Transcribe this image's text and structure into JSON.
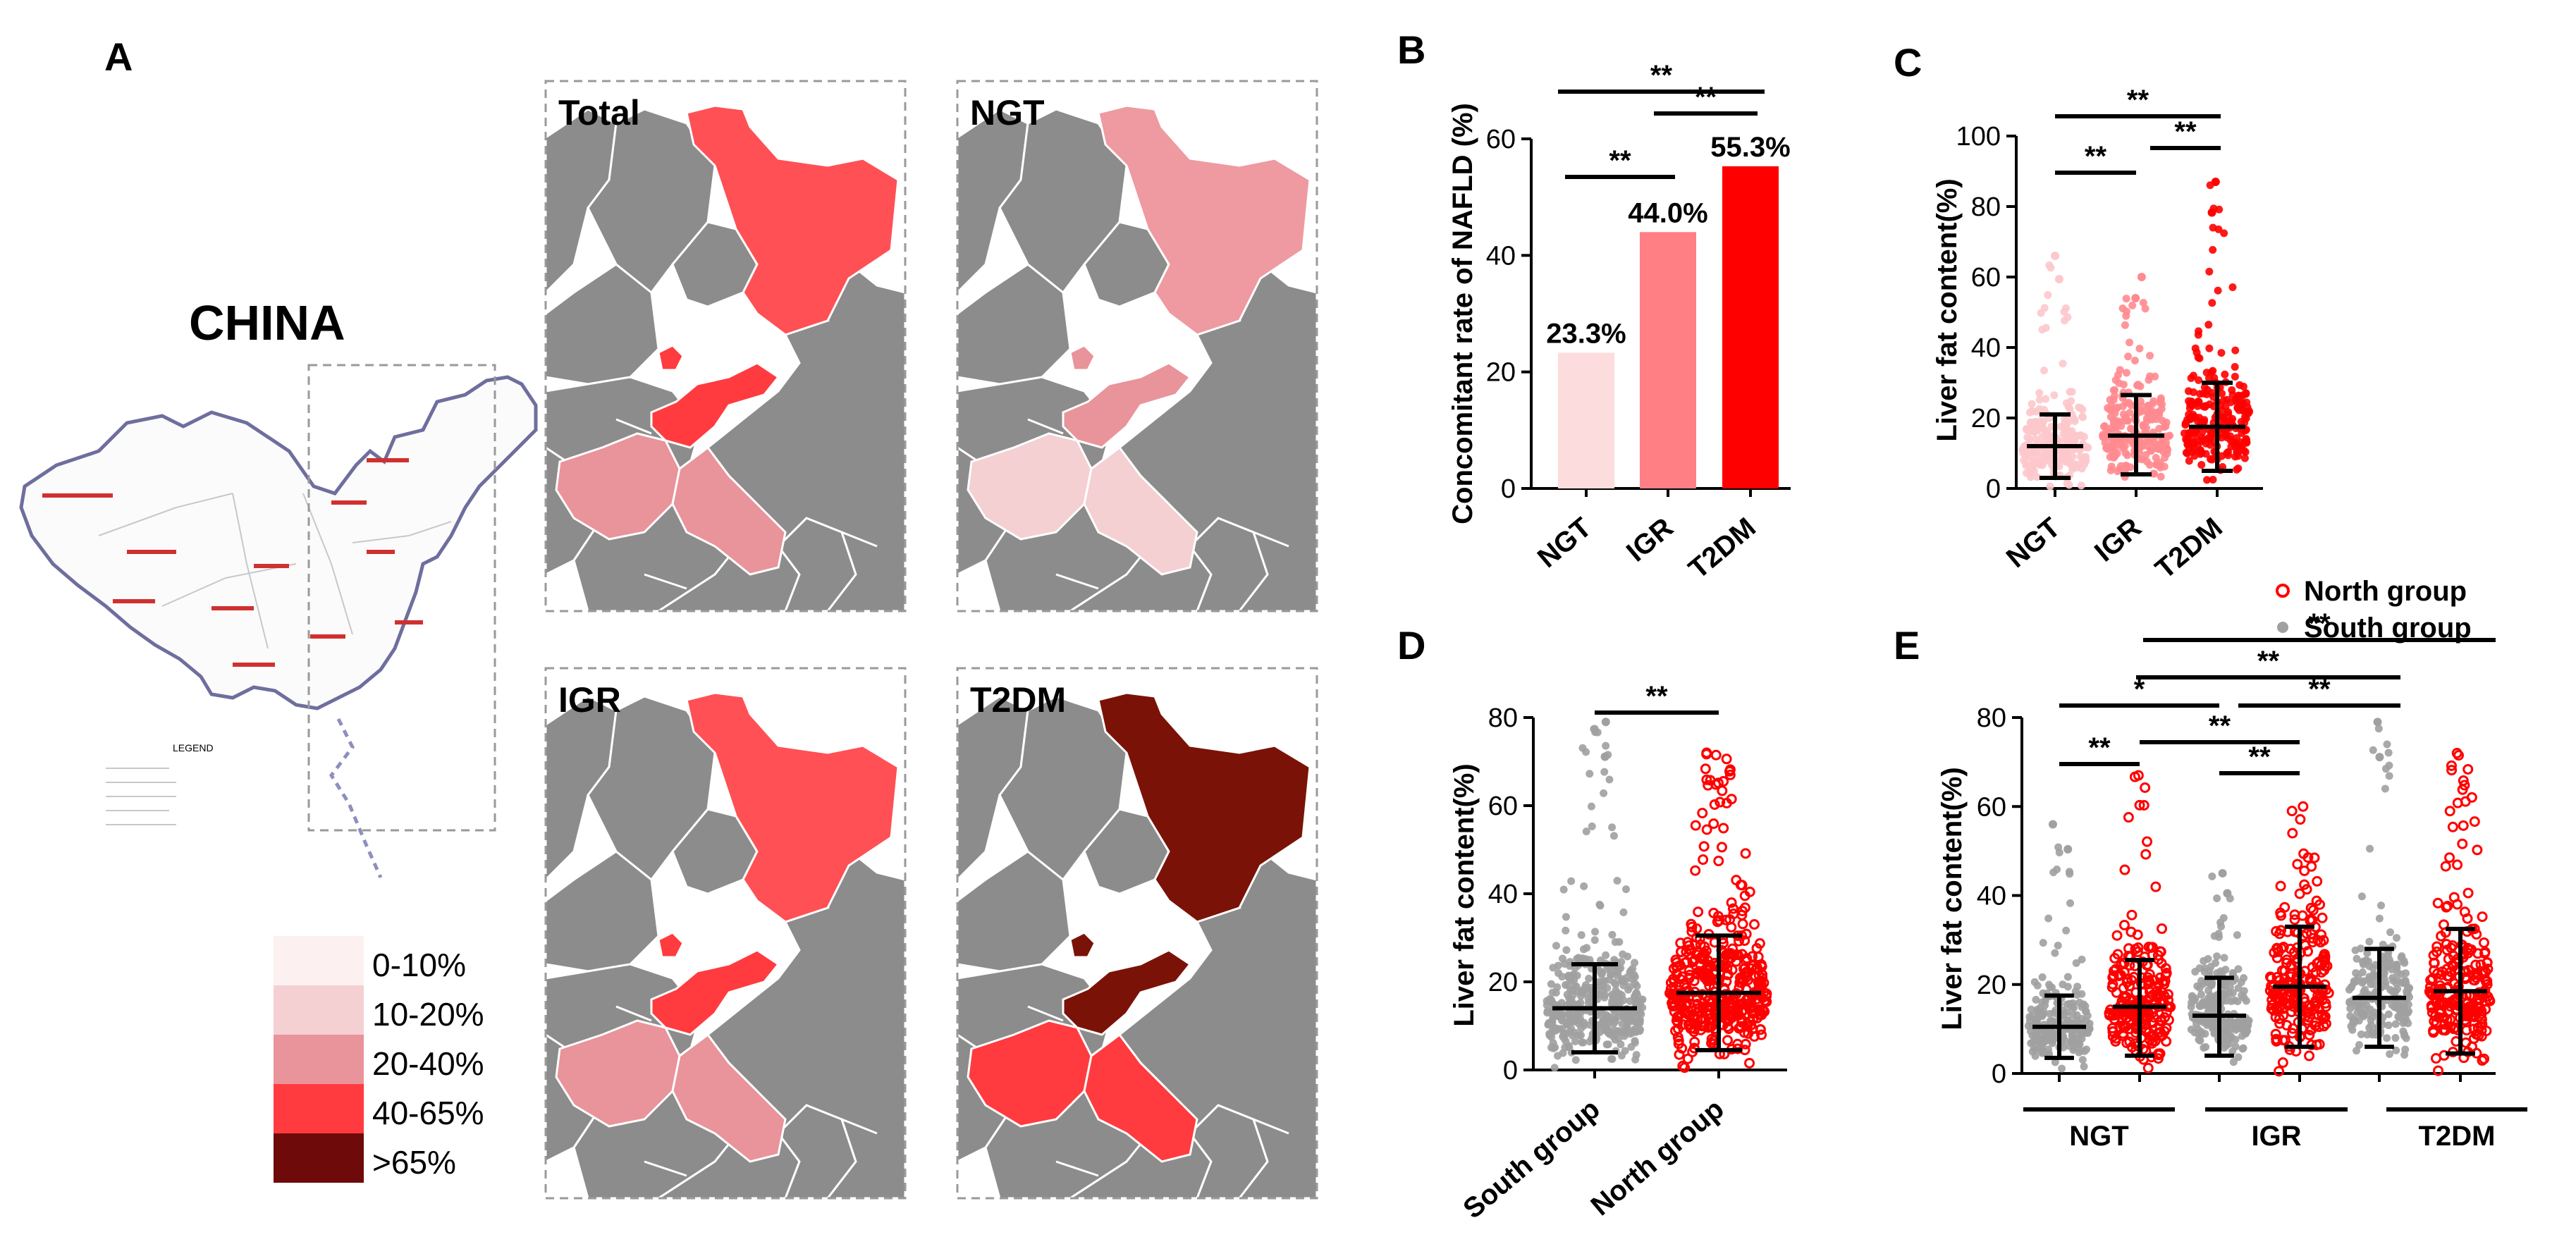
{
  "panels": {
    "A": {
      "label": "A",
      "country_title": "CHINA",
      "map_titles": [
        "Total",
        "NGT",
        "IGR",
        "T2DM"
      ],
      "inset_legend_title": "LEGEND",
      "legend_bins": [
        {
          "label": "0-10%",
          "color": "#fdf0f0"
        },
        {
          "label": "10-20%",
          "color": "#f4d0d2"
        },
        {
          "label": "20-40%",
          "color": "#e9939a"
        },
        {
          "label": "40-65%",
          "color": "#ff3b3f"
        },
        {
          "label": ">65%",
          "color": "#6e0a0a"
        }
      ],
      "region_colors": {
        "Total": {
          "northeast": "#ff5055",
          "shandong": "#ff3b3f",
          "henan": "#e9939a",
          "jiangsu": "#e9939a",
          "beijing": "#ff3b3f"
        },
        "NGT": {
          "northeast": "#ee9aa0",
          "shandong": "#e9939a",
          "henan": "#f4d0d2",
          "jiangsu": "#f4d0d2",
          "beijing": "#e9939a"
        },
        "IGR": {
          "northeast": "#ff5055",
          "shandong": "#ff3b3f",
          "henan": "#e9939a",
          "jiangsu": "#e9939a",
          "beijing": "#ff3b3f"
        },
        "T2DM": {
          "northeast": "#7a1208",
          "shandong": "#7a1208",
          "henan": "#ff3b3f",
          "jiangsu": "#ff3b3f",
          "beijing": "#7a1208"
        }
      }
    },
    "B": {
      "label": "B"
    },
    "C": {
      "label": "C"
    },
    "D": {
      "label": "D"
    },
    "E": {
      "label": "E",
      "legend": [
        "North group",
        "South group"
      ]
    }
  },
  "chart_data": [
    {
      "id": "B",
      "type": "bar",
      "categories": [
        "NGT",
        "IGR",
        "T2DM"
      ],
      "values": [
        23.3,
        44.0,
        55.3
      ],
      "value_labels": [
        "23.3%",
        "44.0%",
        "55.3%"
      ],
      "colors": [
        "#fddcde",
        "#ff7f84",
        "#ff0000"
      ],
      "ylabel": "Concomitant rate of NAFLD (%)",
      "ylim": [
        0,
        60
      ],
      "yticks": [
        0,
        20,
        40,
        60
      ],
      "significance": [
        {
          "from": 0,
          "to": 1,
          "label": "**"
        },
        {
          "from": 1,
          "to": 2,
          "label": "**"
        },
        {
          "from": 0,
          "to": 2,
          "label": "**"
        }
      ]
    },
    {
      "id": "C",
      "type": "scatter",
      "categories": [
        "NGT",
        "IGR",
        "T2DM"
      ],
      "ylabel": "Liver fat content(%)",
      "ylim": [
        0,
        100
      ],
      "yticks": [
        0,
        20,
        40,
        60,
        80,
        100
      ],
      "groups": [
        {
          "name": "NGT",
          "color": "#fcc8cc",
          "mean": 12,
          "sd_low": 3,
          "sd_high": 21,
          "max": 66
        },
        {
          "name": "IGR",
          "color": "#ff8a8f",
          "mean": 15,
          "sd_low": 4,
          "sd_high": 26.5,
          "max": 60
        },
        {
          "name": "T2DM",
          "color": "#ff0000",
          "mean": 17.5,
          "sd_low": 5,
          "sd_high": 30,
          "max": 87
        }
      ],
      "significance": [
        {
          "from": 0,
          "to": 1,
          "label": "**"
        },
        {
          "from": 1,
          "to": 2,
          "label": "**"
        },
        {
          "from": 0,
          "to": 2,
          "label": "**"
        }
      ]
    },
    {
      "id": "D",
      "type": "scatter",
      "categories": [
        "South group",
        "North group"
      ],
      "ylabel": "Liver fat content(%)",
      "ylim": [
        0,
        80
      ],
      "yticks": [
        0,
        20,
        40,
        60,
        80
      ],
      "groups": [
        {
          "name": "South group",
          "color": "#a0a0a0",
          "mean": 14,
          "sd_low": 4,
          "sd_high": 24,
          "max": 79
        },
        {
          "name": "North group",
          "color": "#ff0000",
          "mean": 17.5,
          "sd_low": 4.5,
          "sd_high": 30.5,
          "max": 72
        }
      ],
      "significance": [
        {
          "from": 0,
          "to": 1,
          "label": "**"
        }
      ]
    },
    {
      "id": "E",
      "type": "scatter",
      "categories": [
        "NGT",
        "IGR",
        "T2DM"
      ],
      "ylabel": "Liver fat content(%)",
      "ylim": [
        0,
        80
      ],
      "yticks": [
        0,
        20,
        40,
        60,
        80
      ],
      "series": [
        {
          "name": "South group",
          "color": "#a0a0a0"
        },
        {
          "name": "North group",
          "color": "#ff0000"
        }
      ],
      "groups": [
        {
          "name": "NGT South",
          "color": "#a0a0a0",
          "mean": 10.5,
          "sd_low": 3.5,
          "sd_high": 17.5,
          "max": 56
        },
        {
          "name": "NGT North",
          "color": "#ff0000",
          "mean": 15,
          "sd_low": 4,
          "sd_high": 25.5,
          "max": 67
        },
        {
          "name": "IGR South",
          "color": "#a0a0a0",
          "mean": 13,
          "sd_low": 4,
          "sd_high": 21.5,
          "max": 45
        },
        {
          "name": "IGR North",
          "color": "#ff0000",
          "mean": 19.5,
          "sd_low": 6,
          "sd_high": 33,
          "max": 60
        },
        {
          "name": "T2DM South",
          "color": "#a0a0a0",
          "mean": 17,
          "sd_low": 6,
          "sd_high": 28,
          "max": 79
        },
        {
          "name": "T2DM North",
          "color": "#ff0000",
          "mean": 18.5,
          "sd_low": 4.5,
          "sd_high": 32.5,
          "max": 72
        }
      ],
      "significance": [
        {
          "from": 0,
          "to": 1,
          "label": "**"
        },
        {
          "from": 2,
          "to": 3,
          "label": "**"
        },
        {
          "from": 1,
          "to": 3,
          "label": "**"
        },
        {
          "from": 0,
          "to": 2,
          "label": "*"
        },
        {
          "from": 2,
          "to": 4,
          "label": "**"
        },
        {
          "from": 1,
          "to": 5,
          "label": "**"
        },
        {
          "from": 0,
          "to": 5,
          "label": "**"
        }
      ]
    }
  ]
}
